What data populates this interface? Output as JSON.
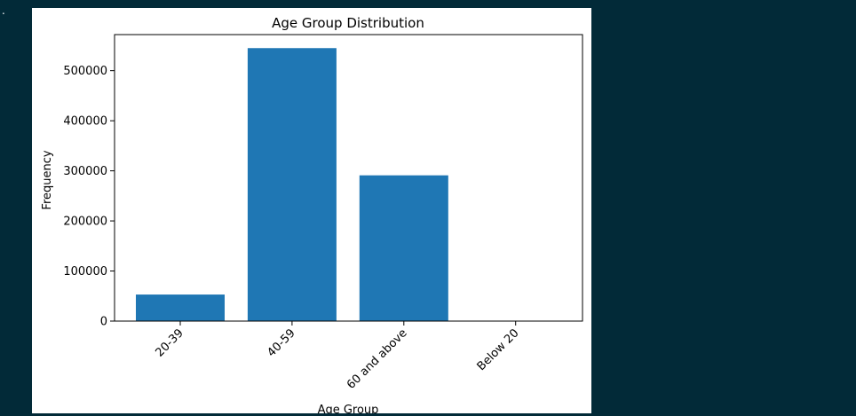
{
  "output_marker": ".",
  "chart_data": {
    "type": "bar",
    "title": "Age Group Distribution",
    "xlabel": "Age Group",
    "ylabel": "Frequency",
    "categories": [
      "20-39",
      "40-59",
      "60 and above",
      "Below 20"
    ],
    "values": [
      53000,
      545000,
      291000,
      300
    ],
    "ylim": [
      0,
      572000
    ],
    "yticks": [
      0,
      100000,
      200000,
      300000,
      400000,
      500000
    ],
    "bar_color": "#1f77b4",
    "grid": false,
    "legend": "none"
  }
}
